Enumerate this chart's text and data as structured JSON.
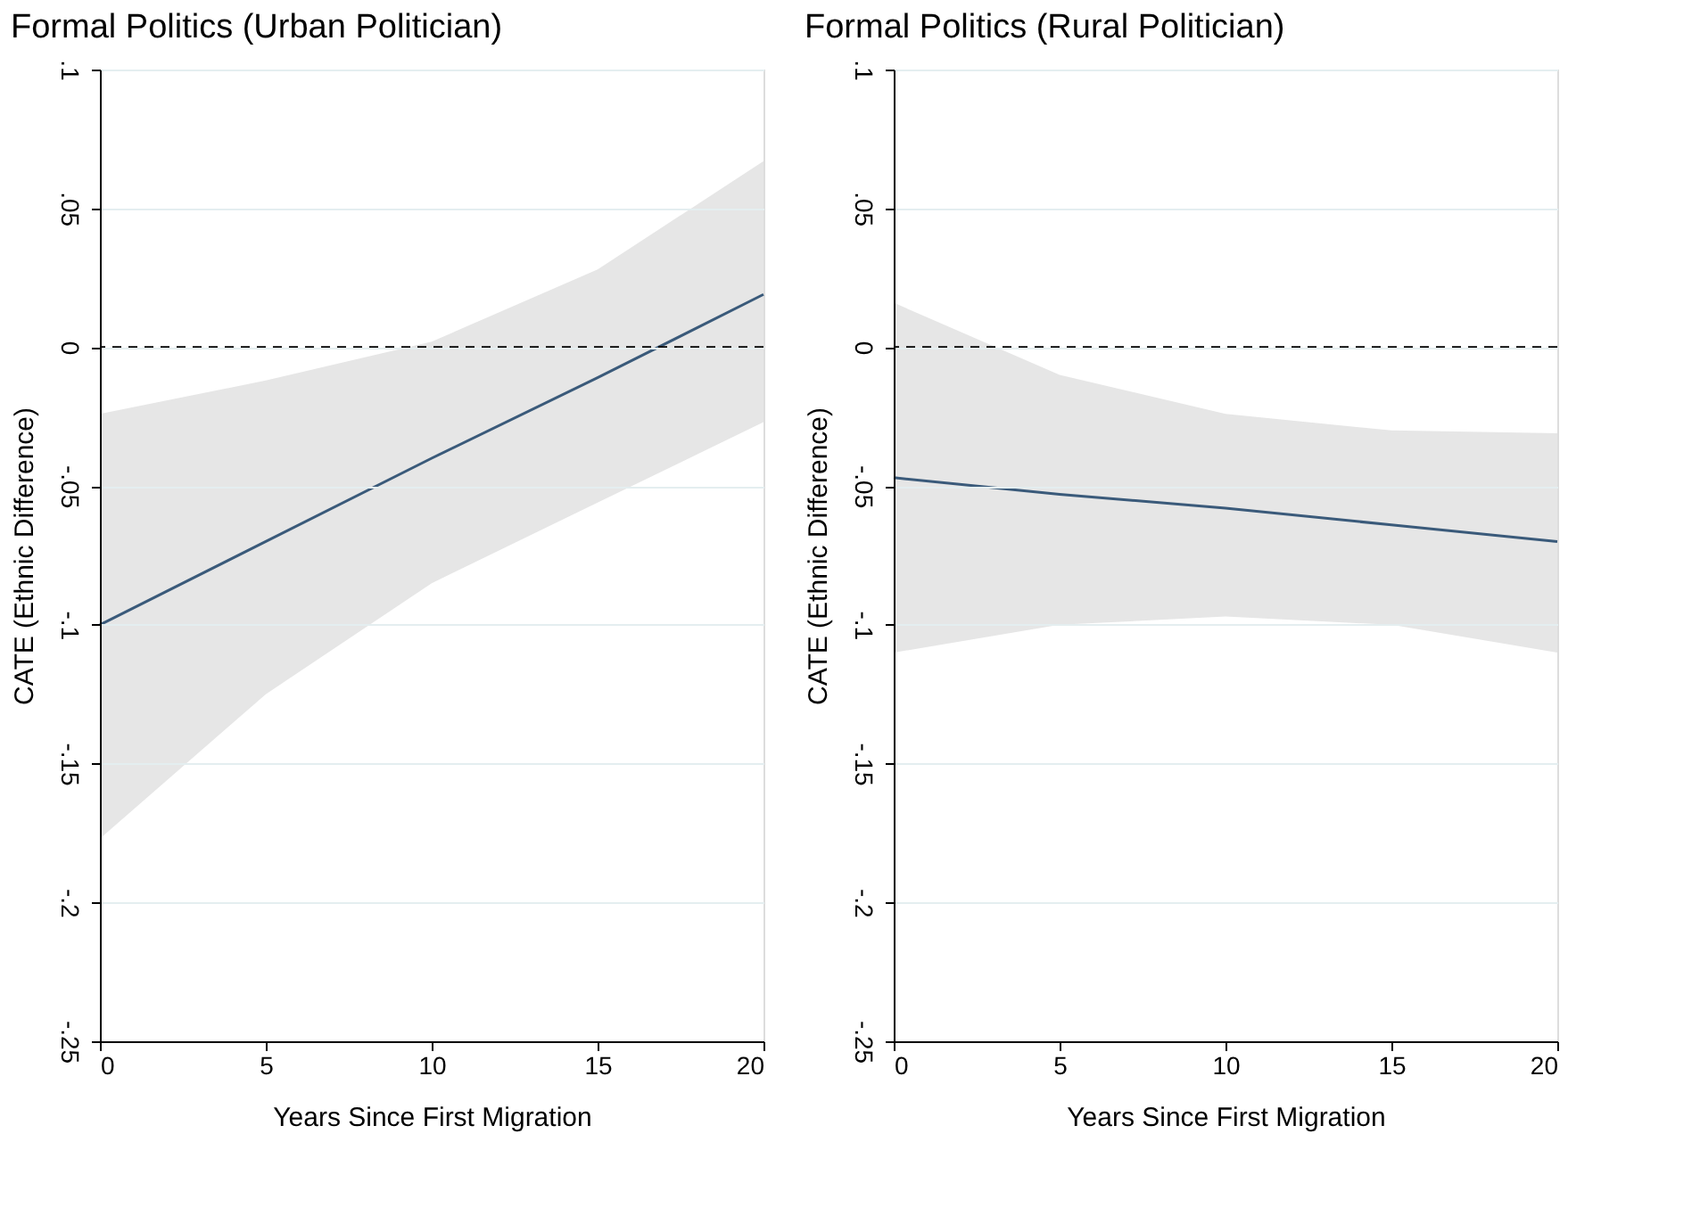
{
  "chart_data": [
    {
      "type": "line",
      "title": "Formal Politics (Urban Politician)",
      "xlabel": "Years Since First Migration",
      "ylabel": "CATE (Ethnic Difference)",
      "x": [
        0,
        5,
        10,
        15,
        20
      ],
      "series": [
        {
          "color": "#3a5a7a",
          "values": [
            -0.1,
            -0.07,
            -0.04,
            -0.011,
            0.019
          ],
          "lower": [
            -0.177,
            -0.125,
            -0.085,
            -0.056,
            -0.027
          ],
          "upper": [
            -0.024,
            -0.012,
            0.002,
            0.028,
            0.067
          ]
        }
      ],
      "xlim": [
        0,
        20
      ],
      "xticks": [
        0,
        5,
        10,
        15,
        20
      ],
      "ylim": [
        -0.25,
        0.1
      ],
      "yticks": [
        {
          "value": 0.1,
          "label": ".1"
        },
        {
          "value": 0.05,
          "label": ".05"
        },
        0,
        {
          "value": -0.05,
          "label": "-.05"
        },
        {
          "value": -0.1,
          "label": "-.1"
        },
        {
          "value": -0.15,
          "label": "-.15"
        },
        {
          "value": -0.2,
          "label": "-.2"
        },
        {
          "value": -0.25,
          "label": "-.25"
        }
      ],
      "ref_lines": [
        {
          "axis": "y",
          "value": 0,
          "color": "#000000",
          "line_style": "dashed"
        }
      ],
      "grid": "y"
    },
    {
      "type": "line",
      "title": "Formal Politics (Rural Politician)",
      "xlabel": "Years Since First Migration",
      "ylabel": "CATE (Ethnic Difference)",
      "x": [
        0,
        5,
        10,
        15,
        20
      ],
      "series": [
        {
          "color": "#3a5a7a",
          "values": [
            -0.047,
            -0.053,
            -0.058,
            -0.064,
            -0.07
          ],
          "lower": [
            -0.11,
            -0.1,
            -0.097,
            -0.1,
            -0.11
          ],
          "upper": [
            0.016,
            -0.01,
            -0.024,
            -0.03,
            -0.031
          ]
        }
      ],
      "xlim": [
        0,
        20
      ],
      "xticks": [
        0,
        5,
        10,
        15,
        20
      ],
      "ylim": [
        -0.25,
        0.1
      ],
      "yticks": [
        {
          "value": 0.1,
          "label": ".1"
        },
        {
          "value": 0.05,
          "label": ".05"
        },
        0,
        {
          "value": -0.05,
          "label": "-.05"
        },
        {
          "value": -0.1,
          "label": "-.1"
        },
        {
          "value": -0.15,
          "label": "-.15"
        },
        {
          "value": -0.2,
          "label": "-.2"
        },
        {
          "value": -0.25,
          "label": "-.25"
        }
      ],
      "ref_lines": [
        {
          "axis": "y",
          "value": 0,
          "color": "#000000",
          "line_style": "dashed"
        }
      ],
      "grid": "y"
    }
  ]
}
